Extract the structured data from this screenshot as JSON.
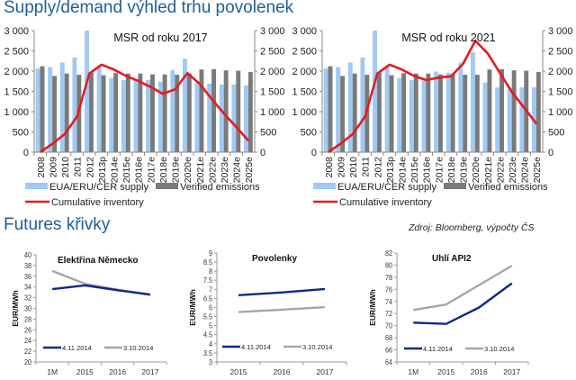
{
  "headings": {
    "top": "Supply/demand výhled trhu povolenek",
    "bottom": "Futures křivky",
    "source": "Zdroj: Bloomberg, výpočty ČS"
  },
  "colors": {
    "supply": "#9fcaf4",
    "emissions": "#7a7a7a",
    "inventory": "#e8191c",
    "navy": "#0d2a87",
    "grey": "#a6a6a6",
    "heading": "#1f5f99"
  },
  "chart_data": [
    {
      "type": "bar",
      "title": "MSR od roku 2017",
      "categories": [
        "2008",
        "2009",
        "2010",
        "2011",
        "2012",
        "2013p",
        "2014e",
        "2015e",
        "2016e",
        "2017e",
        "2018e",
        "2019e",
        "2020e",
        "2021e",
        "2022e",
        "2023e",
        "2024e",
        "2025e"
      ],
      "ylim": [
        0,
        3000
      ],
      "yticks": [
        "0",
        "500",
        "1 000",
        "1 500",
        "2 000",
        "2 500",
        "3 000"
      ],
      "y2ticks": [
        "0",
        "500",
        "1 000",
        "1 500",
        "2 000",
        "2 500",
        "3 000"
      ],
      "series": [
        {
          "name": "EUA/ERU/CER supply",
          "kind": "bar",
          "values": [
            2070,
            2100,
            2210,
            2340,
            3000,
            2100,
            1830,
            1780,
            1770,
            1780,
            1740,
            2030,
            2310,
            1720,
            1690,
            1670,
            1670,
            1650
          ]
        },
        {
          "name": "Verified emissions",
          "kind": "bar",
          "values": [
            2120,
            1880,
            1940,
            1910,
            1960,
            1900,
            1950,
            1940,
            1940,
            1920,
            1920,
            1910,
            1940,
            2040,
            2050,
            2020,
            2010,
            1980
          ]
        },
        {
          "name": "Cumulative inventory",
          "kind": "line",
          "values": [
            0,
            210,
            450,
            880,
            1940,
            2160,
            2040,
            1880,
            1760,
            1610,
            1440,
            1550,
            1950,
            1690,
            1310,
            950,
            620,
            280
          ]
        }
      ]
    },
    {
      "type": "bar",
      "title": "MSR od roku 2021",
      "categories": [
        "2008",
        "2009",
        "2010",
        "2011",
        "2012",
        "2013p",
        "2014e",
        "2015e",
        "2016e",
        "2017e",
        "2018e",
        "2019e",
        "2020e",
        "2021e",
        "2022e",
        "2023e",
        "2024e",
        "2025e"
      ],
      "ylim": [
        0,
        3000
      ],
      "yticks": [
        "0",
        "500",
        "1 000",
        "1 500",
        "2 000",
        "2 500",
        "3 000"
      ],
      "y2ticks": [
        "0",
        "500",
        "1 000",
        "1 500",
        "2 000",
        "2 500",
        "3 000"
      ],
      "series": [
        {
          "name": "EUA/ERU/CER supply",
          "kind": "bar",
          "values": [
            2070,
            2100,
            2210,
            2340,
            3000,
            2100,
            1830,
            1780,
            1770,
            1990,
            1960,
            2210,
            2470,
            1720,
            1600,
            1600,
            1600,
            1600
          ]
        },
        {
          "name": "Verified emissions",
          "kind": "bar",
          "values": [
            2120,
            1880,
            1940,
            1910,
            1960,
            1900,
            1950,
            1940,
            1940,
            1920,
            1920,
            1910,
            1910,
            2040,
            2050,
            2020,
            2010,
            1980
          ]
        },
        {
          "name": "Cumulative inventory",
          "kind": "line",
          "values": [
            0,
            210,
            450,
            880,
            1940,
            2160,
            2040,
            1880,
            1780,
            1840,
            1870,
            2180,
            2750,
            2440,
            1960,
            1480,
            1090,
            700
          ]
        }
      ]
    },
    {
      "type": "line",
      "title": "Elektřina Německo",
      "ylabel": "EUR/MWh",
      "categories": [
        "1M",
        "2015",
        "2016",
        "2017"
      ],
      "ylim": [
        20,
        40
      ],
      "yticks": [
        "20",
        "22",
        "24",
        "26",
        "28",
        "30",
        "32",
        "34",
        "36",
        "38",
        "40"
      ],
      "series": [
        {
          "name": "4.11.2014",
          "color": "navy",
          "values": [
            33.6,
            34.3,
            33.4,
            32.6
          ]
        },
        {
          "name": "3.10.2014",
          "color": "grey",
          "values": [
            37.0,
            34.6,
            33.5,
            32.5
          ]
        }
      ]
    },
    {
      "type": "line",
      "title": "Povolenky",
      "ylabel": "EUR/MWh",
      "categories": [
        "2015",
        "2016",
        "2017"
      ],
      "ylim": [
        3,
        9
      ],
      "yticks": [
        "3",
        "3.5",
        "4",
        "4.5",
        "5",
        "5.5",
        "6",
        "6.5",
        "7",
        "7.5",
        "8",
        "8.5",
        "9"
      ],
      "series": [
        {
          "name": "4.11.2014",
          "color": "navy",
          "values": [
            6.68,
            6.83,
            7.02
          ]
        },
        {
          "name": "3.10.2014",
          "color": "grey",
          "values": [
            5.75,
            5.88,
            6.02
          ]
        }
      ]
    },
    {
      "type": "line",
      "title": "Uhlí API2",
      "ylabel": "EUR/MWh",
      "categories": [
        "1M",
        "2015",
        "2016",
        "2017"
      ],
      "ylim": [
        64,
        82
      ],
      "yticks": [
        "64",
        "66",
        "68",
        "70",
        "72",
        "74",
        "76",
        "78",
        "80",
        "82"
      ],
      "series": [
        {
          "name": "4.11.2014",
          "color": "navy",
          "values": [
            70.5,
            70.3,
            73.0,
            77.0
          ]
        },
        {
          "name": "3.10.2014",
          "color": "grey",
          "values": [
            72.6,
            73.5,
            76.7,
            79.9
          ]
        }
      ]
    }
  ]
}
